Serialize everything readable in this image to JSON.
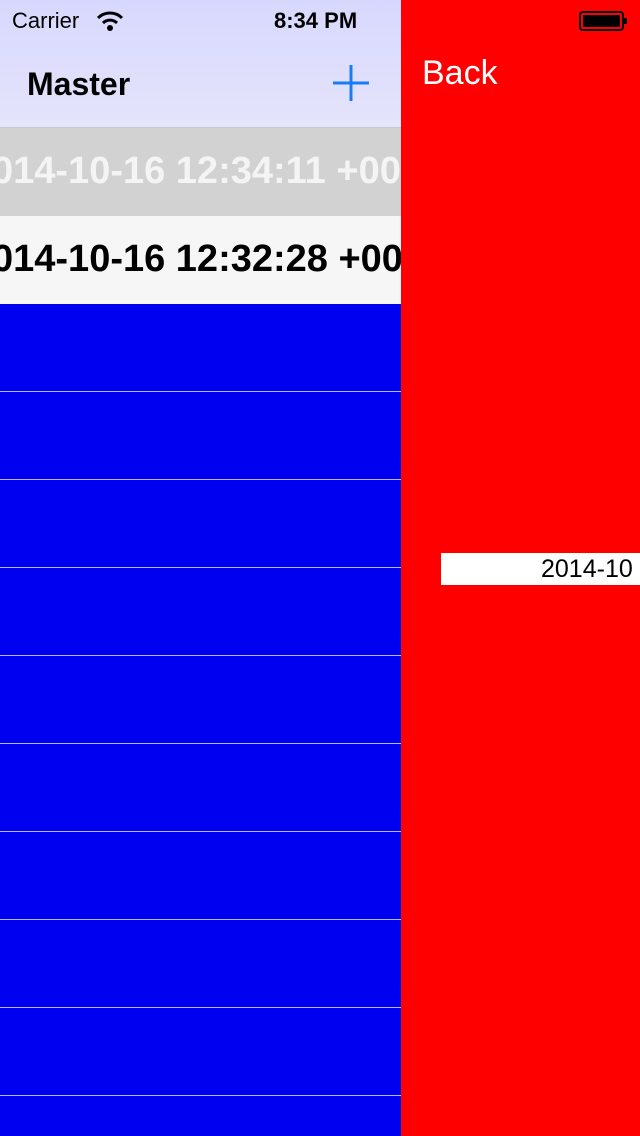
{
  "status_bar": {
    "carrier": "Carrier",
    "time": "8:34 PM"
  },
  "master": {
    "title": "Master",
    "rows": [
      "014-10-16 12:34:11 +00",
      "014-10-16 12:32:28 +00"
    ]
  },
  "detail": {
    "back": "Back",
    "date_label": "2014-10"
  }
}
